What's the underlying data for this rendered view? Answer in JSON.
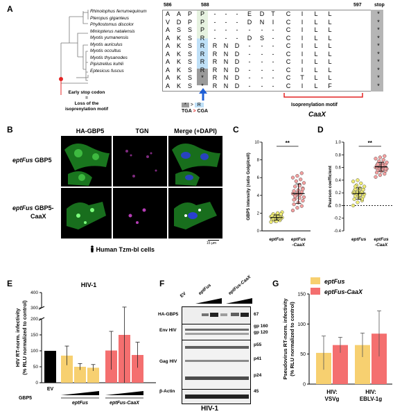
{
  "panels": {
    "A": "A",
    "B": "B",
    "C": "C",
    "D": "D",
    "E": "E",
    "F": "F",
    "G": "G"
  },
  "panelA": {
    "species": [
      "Rhinolophus ferrumequinum",
      "Pteropus giganteus",
      "Phyllostomus discolor",
      "Miniopterus natalensis",
      "Myotis yumanensis",
      "Myotis auriculus",
      "Myotis occultus",
      "Myotis thysanodes",
      "Pipistrellus kuhlii",
      "Eptesicus fuscus"
    ],
    "pos_start": "586",
    "pos_mid": "588",
    "pos_end": "597",
    "stop_label": "stop",
    "rows": [
      [
        "A",
        "A",
        "P",
        "P",
        "-",
        "-",
        "-",
        "E",
        "D",
        "T",
        "C",
        "I",
        "L",
        "L",
        "*"
      ],
      [
        "V",
        "D",
        "P",
        "P",
        "-",
        "-",
        "-",
        "D",
        "N",
        "I",
        "C",
        "I",
        "L",
        "L",
        "*"
      ],
      [
        "A",
        "S",
        "S",
        "P",
        "-",
        "-",
        "-",
        "-",
        "-",
        "-",
        "C",
        "I",
        "L",
        "L",
        "*"
      ],
      [
        "A",
        "K",
        "S",
        "R",
        "-",
        "-",
        "-",
        "D",
        "S",
        "-",
        "C",
        "I",
        "L",
        "L",
        "*"
      ],
      [
        "A",
        "K",
        "S",
        "R",
        "R",
        "N",
        "D",
        "-",
        "-",
        "-",
        "C",
        "I",
        "L",
        "L",
        "*"
      ],
      [
        "A",
        "K",
        "S",
        "R",
        "R",
        "N",
        "D",
        "-",
        "-",
        "-",
        "C",
        "I",
        "L",
        "L",
        "*"
      ],
      [
        "A",
        "K",
        "S",
        "R",
        "R",
        "N",
        "D",
        "-",
        "-",
        "-",
        "C",
        "I",
        "L",
        "L",
        "*"
      ],
      [
        "A",
        "K",
        "S",
        "R",
        "R",
        "N",
        "D",
        "-",
        "-",
        "-",
        "C",
        "I",
        "L",
        "L",
        "*"
      ],
      [
        "A",
        "K",
        "S",
        "*",
        "R",
        "N",
        "D",
        "-",
        "-",
        "-",
        "C",
        "T",
        "L",
        "L",
        "*"
      ],
      [
        "A",
        "K",
        "S",
        "*",
        "R",
        "N",
        "D",
        "-",
        "-",
        "-",
        "C",
        "I",
        "L",
        "F",
        "*"
      ]
    ],
    "early_stop_note": [
      "Early stop codon",
      "=",
      "Loss of the",
      "isoprenylation motif"
    ],
    "mutation": {
      "from": "*",
      "to": "R",
      "arrow": ">",
      "codon_from": "TGA",
      "codon_to": "CGA"
    },
    "motif_label": "Isoprenylation motif",
    "motif_name": "CaaX"
  },
  "panelB": {
    "col_titles": [
      "HA-GBP5",
      "TGN",
      "Merge (+DAPI)"
    ],
    "row1_italic": "eptFus",
    "row1_rest": " GBP5",
    "row2_italic": "eptFus",
    "row2_rest": " GBP5-",
    "row2_line2": "CaaX",
    "scale_bar": "15 µm",
    "cells_label": "Human Tzm-bl cells"
  },
  "chart_data": [
    {
      "id": "C",
      "type": "scatter",
      "ylabel": "GBP5 intensity (ratio Golgi/cell)",
      "ylim": [
        0,
        10
      ],
      "yticks": [
        "0",
        "2",
        "4",
        "6",
        "8",
        "10"
      ],
      "categories": [
        "eptFus",
        "eptFus -CaaX"
      ],
      "cat_lines": [
        [
          "eptFus"
        ],
        [
          "eptFus",
          "-CaaX"
        ]
      ],
      "significance": "**",
      "series": [
        {
          "values": [
            1.0,
            1.1,
            1.2,
            1.3,
            1.3,
            1.4,
            1.4,
            1.5,
            1.5,
            1.5,
            1.6,
            1.6,
            1.6,
            1.7,
            1.7,
            1.8,
            1.8,
            1.9,
            2.0,
            2.1,
            1.2,
            1.4,
            1.6,
            1.3,
            1.5,
            1.7,
            1.1,
            1.9,
            1.4,
            1.6
          ],
          "mean": 1.5,
          "sd": 0.3
        },
        {
          "values": [
            2.3,
            2.6,
            2.8,
            3.0,
            3.2,
            3.4,
            3.6,
            3.7,
            3.8,
            4.0,
            4.1,
            4.2,
            4.3,
            4.4,
            4.5,
            4.6,
            4.8,
            5.0,
            5.2,
            5.4,
            5.6,
            5.8,
            6.0,
            6.2,
            6.5,
            3.5,
            4.2,
            4.7,
            3.9,
            5.1
          ],
          "mean": 4.2,
          "sd": 1.1
        }
      ]
    },
    {
      "id": "D",
      "type": "scatter",
      "ylabel": "Pearson coefficient",
      "ylim": [
        -0.4,
        1.0
      ],
      "yticks": [
        "-0.4",
        "-0.2",
        "0.0",
        "0.2",
        "0.4",
        "0.6",
        "0.8",
        "1.0"
      ],
      "categories": [
        "eptFus",
        "eptFus -CaaX"
      ],
      "cat_lines": [
        [
          "eptFus"
        ],
        [
          "eptFus",
          "-CaaX"
        ]
      ],
      "significance": "**",
      "series": [
        {
          "values": [
            0.0,
            0.05,
            0.08,
            0.1,
            0.12,
            0.14,
            0.15,
            0.16,
            0.18,
            0.19,
            0.2,
            0.2,
            0.21,
            0.22,
            0.23,
            0.24,
            0.25,
            0.26,
            0.28,
            0.3,
            0.32,
            0.35,
            0.38,
            0.4,
            0.1,
            0.2,
            0.15,
            0.25,
            0.3,
            0.17
          ],
          "mean": 0.19,
          "sd": 0.09
        },
        {
          "values": [
            0.45,
            0.48,
            0.5,
            0.52,
            0.54,
            0.55,
            0.56,
            0.57,
            0.58,
            0.59,
            0.6,
            0.6,
            0.61,
            0.62,
            0.63,
            0.64,
            0.65,
            0.66,
            0.67,
            0.68,
            0.7,
            0.72,
            0.74,
            0.76,
            0.78,
            0.6,
            0.62,
            0.58,
            0.65,
            0.63
          ],
          "mean": 0.61,
          "sd": 0.07
        }
      ]
    },
    {
      "id": "E",
      "type": "bar",
      "title": "HIV-1",
      "ylabel": [
        "HIV RT-norm. infectivity",
        "(% RLU normalized to control)"
      ],
      "ylim_lower": [
        0,
        200
      ],
      "ylim_upper": [
        300,
        400
      ],
      "yticks_lower": [
        "0",
        "50",
        "100",
        "150",
        "200"
      ],
      "yticks_upper": [
        "300",
        "400"
      ],
      "categories": [
        "EV",
        "eptFus",
        "eptFus",
        "eptFus",
        "eptFus-CaaX",
        "eptFus-CaaX",
        "eptFus-CaaX"
      ],
      "values": [
        100,
        85,
        50,
        47,
        101,
        150,
        87
      ],
      "errors": [
        0,
        30,
        10,
        10,
        60,
        155,
        40
      ],
      "colors": [
        "#000000",
        "#f7d070",
        "#f7d070",
        "#f7d070",
        "#f46f6f",
        "#f46f6f",
        "#f46f6f"
      ],
      "xaxis_left": "GBP5",
      "ev_label": "EV",
      "group1": "eptFus",
      "group2": "eptFus-CaaX"
    },
    {
      "id": "G",
      "type": "bar",
      "ylabel": [
        "Pseudovirus RT-norm. infectivity",
        "(% RLU normalized to control)"
      ],
      "ylim": [
        0,
        150
      ],
      "yticks": [
        "0",
        "50",
        "100",
        "150"
      ],
      "categories": [
        "HIV:\nVSVg",
        "HIV:\nEBLV-1g"
      ],
      "cat_lines": [
        [
          "HIV:",
          "VSVg"
        ],
        [
          "HIV:",
          "EBLV-1g"
        ]
      ],
      "series": [
        {
          "name": "eptFus",
          "values": [
            52,
            65
          ],
          "errors": [
            28,
            20
          ],
          "color": "#f7d070"
        },
        {
          "name": "eptFus-CaaX",
          "values": [
            65,
            84
          ],
          "errors": [
            13,
            38
          ],
          "color": "#f46f6f"
        }
      ]
    }
  ],
  "panelF": {
    "lane_top": [
      "EV",
      "eptFus",
      "eptFus-CaaX"
    ],
    "rows": [
      {
        "label": "HA-GBP5",
        "mw": [
          "67"
        ]
      },
      {
        "label": "Env HIV",
        "mw": [
          "gp 160",
          "gp 120"
        ]
      },
      {
        "label": "Gag HIV",
        "mw": [
          "p55",
          "p41",
          "p24"
        ]
      },
      {
        "label": "β-Actin",
        "mw": [
          "45"
        ]
      }
    ],
    "bottom": "HIV-1"
  }
}
